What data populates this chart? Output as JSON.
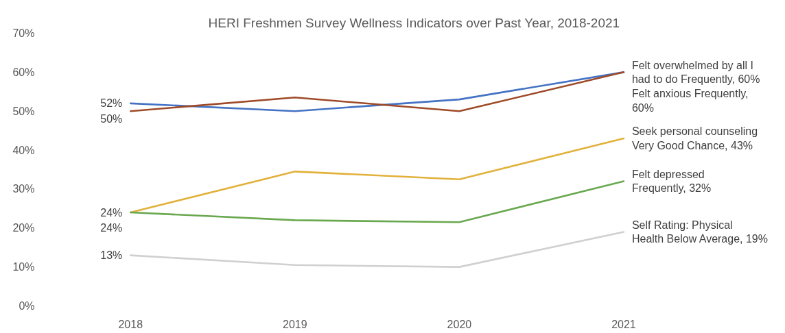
{
  "chart_data": {
    "type": "line",
    "title": "HERI Freshmen Survey Wellness Indicators over Past Year, 2018-2021",
    "categories": [
      "2018",
      "2019",
      "2020",
      "2021"
    ],
    "ylim": [
      0,
      70
    ],
    "yticks": [
      {
        "value": 0,
        "label": "0%"
      },
      {
        "value": 10,
        "label": "10%"
      },
      {
        "value": 20,
        "label": "20%"
      },
      {
        "value": 30,
        "label": "30%"
      },
      {
        "value": 40,
        "label": "40%"
      },
      {
        "value": 50,
        "label": "50%"
      },
      {
        "value": 60,
        "label": "60%"
      },
      {
        "value": 70,
        "label": "70%"
      }
    ],
    "grid": false,
    "series": [
      {
        "name": "Felt overwhelmed by all I had to do Frequently,",
        "color": "#4472c4",
        "values": [
          52,
          50,
          53,
          60
        ],
        "value_labels": [
          "52%",
          null,
          null,
          "60%"
        ]
      },
      {
        "name": "Felt anxious Frequently,",
        "color": "#9e4a28",
        "values": [
          50,
          53.5,
          50,
          60
        ],
        "value_labels": [
          "50%",
          null,
          null,
          "60%"
        ]
      },
      {
        "name": "Seek personal counseling Very Good Chance,",
        "color": "#e2b13c",
        "values": [
          24,
          34.5,
          32.5,
          43
        ],
        "value_labels": [
          "24%",
          null,
          null,
          "43%"
        ]
      },
      {
        "name": "Felt depressed Frequently,",
        "color": "#6aa84f",
        "values": [
          24,
          22,
          21.5,
          32
        ],
        "value_labels": [
          "24%",
          null,
          null,
          "32%"
        ]
      },
      {
        "name": "Self Rating: Physical Health Below Average,",
        "color": "#d0d0d0",
        "values": [
          13,
          10.5,
          10,
          19
        ],
        "value_labels": [
          "13%",
          null,
          null,
          "19%"
        ]
      }
    ]
  }
}
